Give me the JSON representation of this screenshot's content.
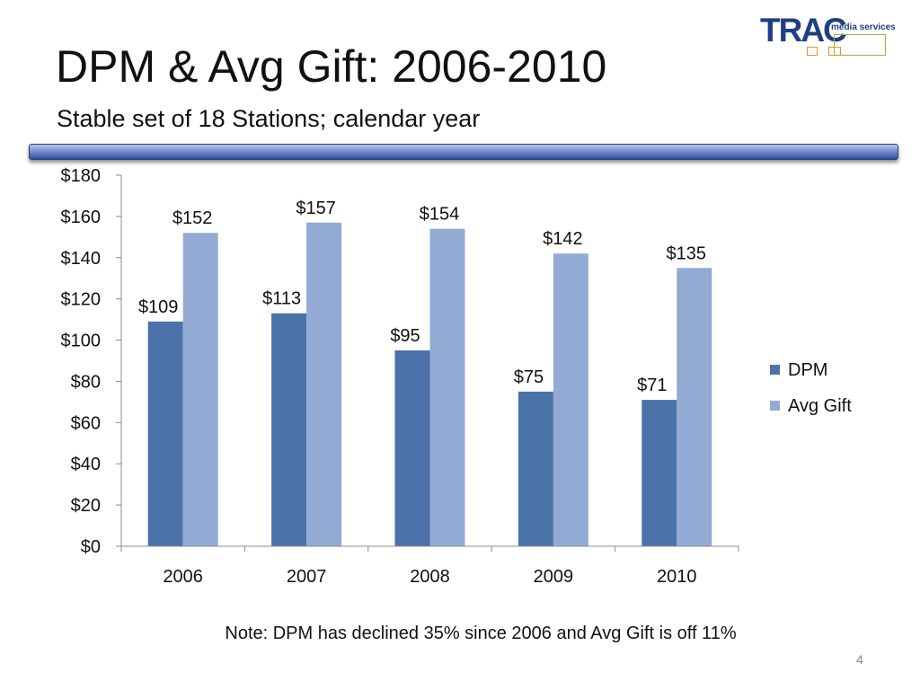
{
  "slide": {
    "title": "DPM & Avg Gift: 2006-2010",
    "subtitle": "Stable set of 18 Stations; calendar year",
    "note": "Note: DPM has declined 35% since 2006 and Avg Gift is off 11%",
    "page_number": "4",
    "logo": {
      "brand": "TRAC",
      "tagline": "media services"
    }
  },
  "chart_data": {
    "type": "bar",
    "categories": [
      "2006",
      "2007",
      "2008",
      "2009",
      "2010"
    ],
    "series": [
      {
        "name": "DPM",
        "values": [
          109,
          113,
          95,
          75,
          71
        ],
        "labels": [
          "$109",
          "$113",
          "$95",
          "$75",
          "$71"
        ],
        "color": "#4a72a8"
      },
      {
        "name": "Avg Gift",
        "values": [
          152,
          157,
          154,
          142,
          135
        ],
        "labels": [
          "$152",
          "$157",
          "$154",
          "$142",
          "$135"
        ],
        "color": "#93aad4"
      }
    ],
    "ylim": [
      0,
      180
    ],
    "yticks": [
      0,
      20,
      40,
      60,
      80,
      100,
      120,
      140,
      160,
      180
    ],
    "ytick_labels": [
      "$0",
      "$20",
      "$40",
      "$60",
      "$80",
      "$100",
      "$120",
      "$140",
      "$160",
      "$180"
    ],
    "grid": false,
    "legend_position": "right"
  }
}
